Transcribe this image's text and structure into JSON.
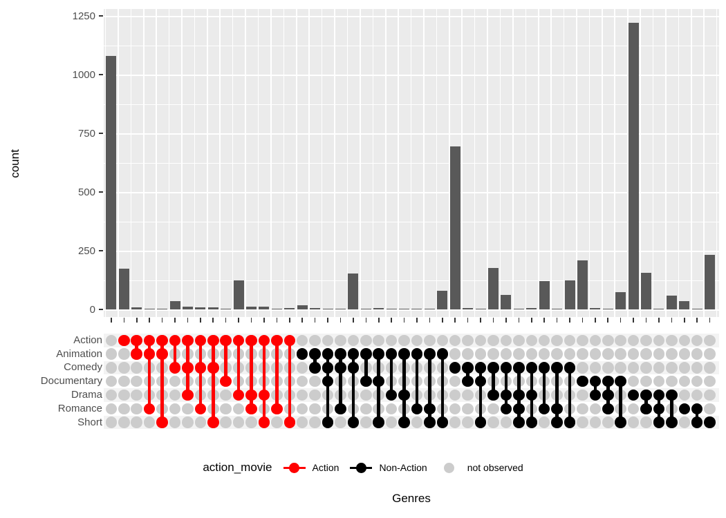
{
  "axes": {
    "y_title": "count",
    "x_title": "Genres",
    "y_ticks": [
      "0",
      "250",
      "500",
      "750",
      "1000",
      "1250"
    ],
    "y_tick_values": [
      0,
      250,
      500,
      750,
      1000,
      1250
    ],
    "y_minor_values": [
      125,
      375,
      625,
      875,
      1125
    ]
  },
  "matrix": {
    "rows": [
      "Action",
      "Animation",
      "Comedy",
      "Documentary",
      "Drama",
      "Romance",
      "Short"
    ],
    "not_observed_color": "#CCCCCC",
    "stripe_color_odd": "#F3F3F3",
    "stripe_color_even": "#FFFFFF"
  },
  "legend": {
    "title": "action_movie",
    "items": [
      {
        "label": "Action",
        "color": "#FF0000",
        "glyph": "lollipop"
      },
      {
        "label": "Non-Action",
        "color": "#000000",
        "glyph": "lollipop"
      },
      {
        "label": "not observed",
        "color": "#CCCCCC",
        "glyph": "dot"
      }
    ]
  },
  "colors": {
    "bar_fill": "#595959",
    "panel_bg": "#EBEBEB",
    "grid": "#FFFFFF",
    "action": "#FF0000",
    "non_action": "#000000",
    "not_observed": "#CCCCCC"
  },
  "chart_data": {
    "type": "bar",
    "title": "",
    "xlabel": "Genres",
    "ylabel": "count",
    "ylim": [
      0,
      1280
    ],
    "grid": true,
    "legend_position": "bottom",
    "row_sets": [
      "Action",
      "Animation",
      "Comedy",
      "Documentary",
      "Drama",
      "Romance",
      "Short"
    ],
    "categories": [
      "",
      "Action",
      "Action-Animation",
      "Action-Animation-Romance",
      "Action-Animation-Short",
      "Action-Comedy",
      "Action-Comedy-Drama",
      "Action-Comedy-Romance",
      "Action-Comedy-Short",
      "Action-Documentary",
      "Action-Drama",
      "Action-Drama-Romance",
      "Action-Drama-Short",
      "Action-Romance",
      "Action-Short",
      "Animation",
      "Animation-Comedy",
      "Animation-Comedy-Documentary-Short",
      "Animation-Comedy-Romance",
      "Animation-Comedy-Short",
      "Animation-Documentary",
      "Animation-Documentary-Short",
      "Animation-Drama",
      "Animation-Drama-Short",
      "Animation-Romance",
      "Animation-Romance-Short",
      "Animation-Short",
      "Comedy",
      "Comedy-Documentary",
      "Comedy-Documentary-Short",
      "Comedy-Drama",
      "Comedy-Drama-Romance",
      "Comedy-Drama-Romance-Short",
      "Comedy-Drama-Short",
      "Comedy-Romance",
      "Comedy-Romance-Short",
      "Comedy-Short",
      "Documentary",
      "Documentary-Drama",
      "Documentary-Drama-Romance",
      "Documentary-Short",
      "Drama",
      "Drama-Romance",
      "Drama-Romance-Short",
      "Drama-Short",
      "Romance",
      "Romance-Short",
      "Short"
    ],
    "combinations": [
      {
        "sets": [],
        "count": 1080,
        "group": "none"
      },
      {
        "sets": [
          "Action"
        ],
        "count": 175,
        "group": "Action"
      },
      {
        "sets": [
          "Action",
          "Animation"
        ],
        "count": 8,
        "group": "Action"
      },
      {
        "sets": [
          "Action",
          "Animation",
          "Romance"
        ],
        "count": 1,
        "group": "Action"
      },
      {
        "sets": [
          "Action",
          "Animation",
          "Short"
        ],
        "count": 3,
        "group": "Action"
      },
      {
        "sets": [
          "Action",
          "Comedy"
        ],
        "count": 35,
        "group": "Action"
      },
      {
        "sets": [
          "Action",
          "Comedy",
          "Drama"
        ],
        "count": 12,
        "group": "Action"
      },
      {
        "sets": [
          "Action",
          "Comedy",
          "Romance"
        ],
        "count": 8,
        "group": "Action"
      },
      {
        "sets": [
          "Action",
          "Comedy",
          "Short"
        ],
        "count": 9,
        "group": "Action"
      },
      {
        "sets": [
          "Action",
          "Documentary"
        ],
        "count": 2,
        "group": "Action"
      },
      {
        "sets": [
          "Action",
          "Drama"
        ],
        "count": 124,
        "group": "Action"
      },
      {
        "sets": [
          "Action",
          "Drama",
          "Romance"
        ],
        "count": 11,
        "group": "Action"
      },
      {
        "sets": [
          "Action",
          "Drama",
          "Short"
        ],
        "count": 12,
        "group": "Action"
      },
      {
        "sets": [
          "Action",
          "Romance"
        ],
        "count": 2,
        "group": "Action"
      },
      {
        "sets": [
          "Action",
          "Short"
        ],
        "count": 6,
        "group": "Action"
      },
      {
        "sets": [
          "Animation"
        ],
        "count": 18,
        "group": "Non-Action"
      },
      {
        "sets": [
          "Animation",
          "Comedy"
        ],
        "count": 6,
        "group": "Non-Action"
      },
      {
        "sets": [
          "Animation",
          "Comedy",
          "Documentary",
          "Short"
        ],
        "count": 1,
        "group": "Non-Action"
      },
      {
        "sets": [
          "Animation",
          "Comedy",
          "Romance"
        ],
        "count": 1,
        "group": "Non-Action"
      },
      {
        "sets": [
          "Animation",
          "Comedy",
          "Short"
        ],
        "count": 152,
        "group": "Non-Action"
      },
      {
        "sets": [
          "Animation",
          "Documentary"
        ],
        "count": 1,
        "group": "Non-Action"
      },
      {
        "sets": [
          "Animation",
          "Documentary",
          "Short"
        ],
        "count": 5,
        "group": "Non-Action"
      },
      {
        "sets": [
          "Animation",
          "Drama"
        ],
        "count": 1,
        "group": "Non-Action"
      },
      {
        "sets": [
          "Animation",
          "Drama",
          "Short"
        ],
        "count": 1,
        "group": "Non-Action"
      },
      {
        "sets": [
          "Animation",
          "Romance"
        ],
        "count": 1,
        "group": "Non-Action"
      },
      {
        "sets": [
          "Animation",
          "Romance",
          "Short"
        ],
        "count": 2,
        "group": "Non-Action"
      },
      {
        "sets": [
          "Animation",
          "Short"
        ],
        "count": 80,
        "group": "Non-Action"
      },
      {
        "sets": [
          "Comedy"
        ],
        "count": 695,
        "group": "Non-Action"
      },
      {
        "sets": [
          "Comedy",
          "Documentary"
        ],
        "count": 6,
        "group": "Non-Action"
      },
      {
        "sets": [
          "Comedy",
          "Documentary",
          "Short"
        ],
        "count": 1,
        "group": "Non-Action"
      },
      {
        "sets": [
          "Comedy",
          "Drama"
        ],
        "count": 177,
        "group": "Non-Action"
      },
      {
        "sets": [
          "Comedy",
          "Drama",
          "Romance"
        ],
        "count": 62,
        "group": "Non-Action"
      },
      {
        "sets": [
          "Comedy",
          "Drama",
          "Romance",
          "Short"
        ],
        "count": 1,
        "group": "Non-Action"
      },
      {
        "sets": [
          "Comedy",
          "Drama",
          "Short"
        ],
        "count": 5,
        "group": "Non-Action"
      },
      {
        "sets": [
          "Comedy",
          "Romance"
        ],
        "count": 122,
        "group": "Non-Action"
      },
      {
        "sets": [
          "Comedy",
          "Romance",
          "Short"
        ],
        "count": 3,
        "group": "Non-Action"
      },
      {
        "sets": [
          "Comedy",
          "Short"
        ],
        "count": 124,
        "group": "Non-Action"
      },
      {
        "sets": [
          "Documentary"
        ],
        "count": 208,
        "group": "Non-Action"
      },
      {
        "sets": [
          "Documentary",
          "Drama"
        ],
        "count": 5,
        "group": "Non-Action"
      },
      {
        "sets": [
          "Documentary",
          "Drama",
          "Romance"
        ],
        "count": 1,
        "group": "Non-Action"
      },
      {
        "sets": [
          "Documentary",
          "Short"
        ],
        "count": 74,
        "group": "Non-Action"
      },
      {
        "sets": [
          "Drama"
        ],
        "count": 1220,
        "group": "Non-Action"
      },
      {
        "sets": [
          "Drama",
          "Romance"
        ],
        "count": 157,
        "group": "Non-Action"
      },
      {
        "sets": [
          "Drama",
          "Romance",
          "Short"
        ],
        "count": 2,
        "group": "Non-Action"
      },
      {
        "sets": [
          "Drama",
          "Short"
        ],
        "count": 60,
        "group": "Non-Action"
      },
      {
        "sets": [
          "Romance"
        ],
        "count": 36,
        "group": "Non-Action"
      },
      {
        "sets": [
          "Romance",
          "Short"
        ],
        "count": 2,
        "group": "Non-Action"
      },
      {
        "sets": [
          "Short"
        ],
        "count": 232,
        "group": "Non-Action"
      }
    ]
  }
}
